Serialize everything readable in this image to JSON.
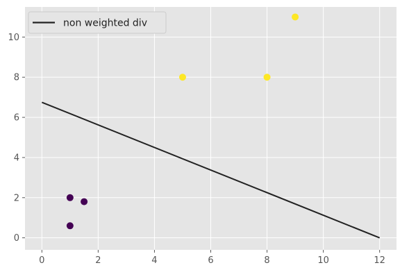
{
  "chart_data": {
    "type": "scatter",
    "style": "ggplot",
    "grid": true,
    "legend": {
      "placement": "top-left",
      "entries": [
        "non weighted div"
      ]
    },
    "xlim": [
      -0.6,
      12.6
    ],
    "ylim": [
      -0.6,
      11.5
    ],
    "xticks": [
      0,
      2,
      4,
      6,
      8,
      10,
      12
    ],
    "yticks": [
      0,
      2,
      4,
      6,
      8,
      10
    ],
    "series": [
      {
        "kind": "scatter",
        "color": "#440154",
        "points": [
          {
            "x": 1.0,
            "y": 2.0
          },
          {
            "x": 1.5,
            "y": 1.8
          },
          {
            "x": 1.0,
            "y": 0.6
          }
        ]
      },
      {
        "kind": "scatter",
        "color": "#fde725",
        "points": [
          {
            "x": 5.0,
            "y": 8.0
          },
          {
            "x": 8.0,
            "y": 8.0
          },
          {
            "x": 9.0,
            "y": 11.0
          }
        ]
      },
      {
        "kind": "line",
        "name": "non weighted div",
        "color": "#222222",
        "points": [
          {
            "x": 0,
            "y": 6.75
          },
          {
            "x": 12,
            "y": 0
          }
        ]
      }
    ]
  }
}
